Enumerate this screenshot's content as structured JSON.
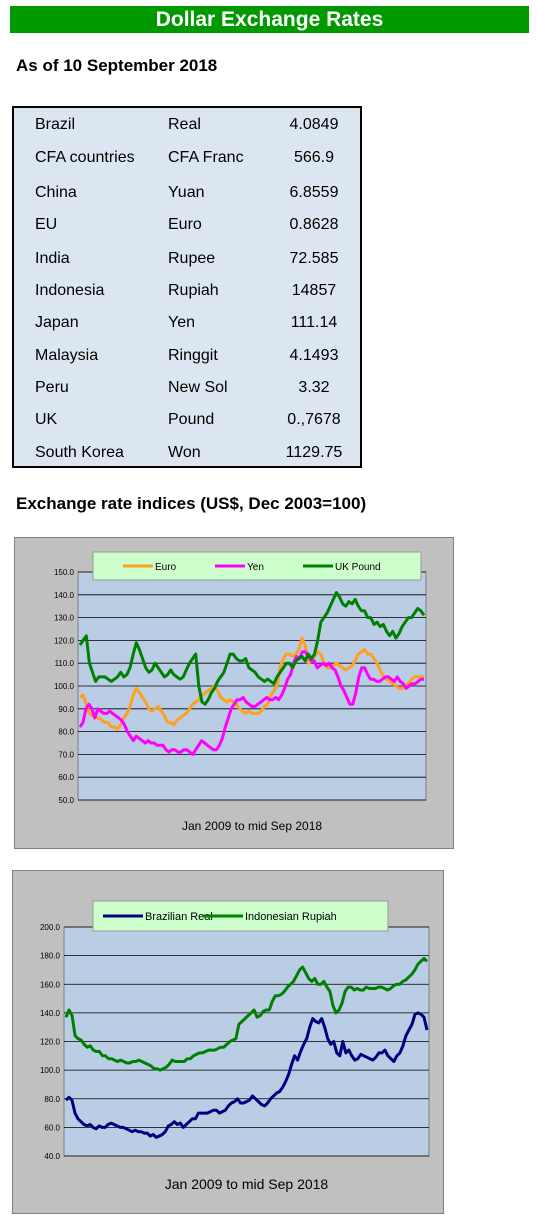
{
  "header": {
    "title": "Dollar Exchange Rates",
    "as_of": "As of 10 September 2018"
  },
  "rates": [
    {
      "country": "Brazil",
      "currency": "Real",
      "value": "4.0849"
    },
    {
      "country": "CFA countries",
      "currency": "CFA Franc",
      "value": "566.9"
    },
    {
      "country": "China",
      "currency": "Yuan",
      "value": "6.8559"
    },
    {
      "country": "EU",
      "currency": "Euro",
      "value": "0.8628"
    },
    {
      "country": "India",
      "currency": "Rupee",
      "value": "72.585"
    },
    {
      "country": "Indonesia",
      "currency": "Rupiah",
      "value": "14857"
    },
    {
      "country": "Japan",
      "currency": "Yen",
      "value": "111.14"
    },
    {
      "country": "Malaysia",
      "currency": "Ringgit",
      "value": "4.1493"
    },
    {
      "country": "Peru",
      "currency": "New Sol",
      "value": "3.32"
    },
    {
      "country": "UK",
      "currency": "Pound",
      "value": "0.,7678"
    },
    {
      "country": "South Korea",
      "currency": "Won",
      "value": "1129.75"
    }
  ],
  "indices_title": "Exchange rate indices (US$, Dec 2003=100)",
  "chart_data": [
    {
      "type": "line",
      "xlabel": "Jan 2009  to mid Sep 2018",
      "ylim": [
        50,
        150
      ],
      "yticks": [
        "50.0",
        "60.0",
        "70.0",
        "80.0",
        "90.0",
        "100.0",
        "110.0",
        "120.0",
        "130.0",
        "140.0",
        "150.0"
      ],
      "grid": true,
      "legend": "top",
      "series": [
        {
          "name": "Euro",
          "color": "#ffa020",
          "values": [
            95,
            96,
            92,
            88,
            87,
            86,
            86,
            85,
            84,
            84,
            82,
            82,
            81,
            83,
            86,
            88,
            91,
            96,
            99,
            97,
            95,
            93,
            90,
            89,
            90,
            91,
            89,
            87,
            84,
            84,
            83,
            85,
            86,
            87,
            88,
            90,
            92,
            93,
            94,
            96,
            97,
            98,
            99,
            100,
            98,
            95,
            94,
            93,
            94,
            93,
            92,
            90,
            89,
            88,
            89,
            88,
            88,
            88,
            89,
            91,
            92,
            96,
            98,
            100,
            108,
            112,
            114,
            114,
            113,
            114,
            116,
            121,
            118,
            110,
            111,
            113,
            115,
            114,
            110,
            108,
            108,
            109,
            110,
            109,
            108,
            107,
            108,
            109,
            111,
            114,
            115,
            116,
            114,
            114,
            112,
            110,
            107,
            104,
            103,
            102,
            101,
            100,
            99,
            99,
            100,
            101,
            103,
            104,
            104,
            104,
            104
          ]
        },
        {
          "name": "Yen",
          "color": "#ff00ff",
          "values": [
            82,
            84,
            90,
            92,
            90,
            86,
            90,
            89,
            88,
            88,
            89,
            88,
            87,
            86,
            85,
            83,
            80,
            78,
            76,
            78,
            77,
            76,
            75,
            76,
            75,
            75,
            74,
            74,
            74,
            72,
            71,
            72,
            72,
            71,
            71,
            72,
            72,
            71,
            70,
            72,
            74,
            76,
            75,
            74,
            73,
            72,
            72,
            74,
            77,
            82,
            86,
            90,
            92,
            94,
            94,
            95,
            93,
            92,
            91,
            91,
            92,
            93,
            94,
            95,
            94,
            94,
            95,
            94,
            96,
            99,
            103,
            105,
            110,
            113,
            112,
            115,
            115,
            113,
            111,
            111,
            108,
            109,
            110,
            109,
            110,
            108,
            107,
            104,
            100,
            98,
            95,
            92,
            92,
            97,
            104,
            108,
            108,
            105,
            103,
            103,
            102,
            102,
            103,
            104,
            104,
            103,
            102,
            104,
            102,
            101,
            99,
            100,
            101,
            101,
            102,
            103,
            103
          ]
        },
        {
          "name": "UK Pound",
          "color": "#008000",
          "values": [
            118,
            120,
            122,
            110,
            106,
            102,
            104,
            104,
            104,
            103,
            102,
            103,
            104,
            106,
            104,
            105,
            108,
            114,
            119,
            116,
            112,
            108,
            106,
            107,
            110,
            108,
            106,
            104,
            105,
            107,
            105,
            104,
            103,
            104,
            107,
            110,
            112,
            114,
            100,
            93,
            92,
            94,
            97,
            99,
            102,
            104,
            106,
            110,
            114,
            114,
            112,
            111,
            111,
            112,
            108,
            107,
            106,
            104,
            103,
            102,
            103,
            102,
            101,
            104,
            106,
            108,
            110,
            110,
            108,
            111,
            112,
            113,
            111,
            114,
            112,
            114,
            120,
            128,
            130,
            132,
            135,
            138,
            141,
            139,
            136,
            135,
            137,
            136,
            138,
            135,
            133,
            133,
            130,
            130,
            127,
            128,
            126,
            127,
            124,
            122,
            124,
            121,
            123,
            126,
            128,
            130,
            130,
            132,
            134,
            133,
            131
          ]
        }
      ]
    },
    {
      "type": "line",
      "xlabel": "Jan 2009  to mid Sep 2018",
      "ylim": [
        40,
        200
      ],
      "yticks": [
        "40.0",
        "60.0",
        "80.0",
        "100.0",
        "120.0",
        "140.0",
        "160.0",
        "180.0",
        "200.0"
      ],
      "grid": true,
      "legend": "top",
      "series": [
        {
          "name": "Brazilian Real",
          "color": "#000080",
          "values": [
            79,
            81,
            79,
            70,
            66,
            64,
            62,
            61,
            62,
            60,
            59,
            61,
            60,
            60,
            62,
            63,
            62,
            61,
            60,
            60,
            59,
            58,
            57,
            58,
            57,
            57,
            56,
            56,
            54,
            55,
            53,
            54,
            55,
            57,
            61,
            62,
            64,
            62,
            63,
            60,
            62,
            64,
            66,
            66,
            70,
            70,
            70,
            70,
            71,
            72,
            72,
            70,
            71,
            72,
            75,
            77,
            78,
            80,
            77,
            77,
            78,
            79,
            82,
            80,
            78,
            76,
            75,
            77,
            80,
            82,
            84,
            85,
            88,
            92,
            97,
            104,
            110,
            107,
            113,
            118,
            122,
            130,
            136,
            134,
            133,
            136,
            130,
            122,
            118,
            120,
            112,
            110,
            120,
            112,
            114,
            110,
            107,
            108,
            111,
            110,
            109,
            108,
            107,
            109,
            112,
            112,
            114,
            110,
            108,
            106,
            110,
            112,
            117,
            124,
            128,
            132,
            139,
            140,
            139,
            137,
            128
          ]
        },
        {
          "name": "Indonesian Rupiah",
          "color": "#008000",
          "values": [
            137,
            142,
            138,
            124,
            122,
            121,
            118,
            116,
            117,
            114,
            113,
            113,
            110,
            110,
            108,
            108,
            107,
            106,
            107,
            106,
            105,
            105,
            106,
            106,
            107,
            106,
            105,
            104,
            103,
            101,
            101,
            100,
            101,
            102,
            104,
            107,
            106,
            106,
            106,
            106,
            108,
            108,
            110,
            111,
            112,
            112,
            113,
            114,
            114,
            114,
            115,
            116,
            116,
            118,
            120,
            121,
            122,
            132,
            134,
            136,
            138,
            140,
            142,
            137,
            138,
            141,
            142,
            142,
            148,
            152,
            152,
            153,
            155,
            158,
            160,
            162,
            166,
            170,
            172,
            168,
            164,
            162,
            164,
            160,
            160,
            162,
            158,
            155,
            145,
            140,
            142,
            147,
            155,
            158,
            158,
            156,
            157,
            156,
            156,
            158,
            157,
            157,
            157,
            158,
            158,
            157,
            156,
            157,
            159,
            160,
            160,
            162,
            163,
            165,
            167,
            170,
            174,
            176,
            178,
            176
          ]
        }
      ]
    }
  ]
}
